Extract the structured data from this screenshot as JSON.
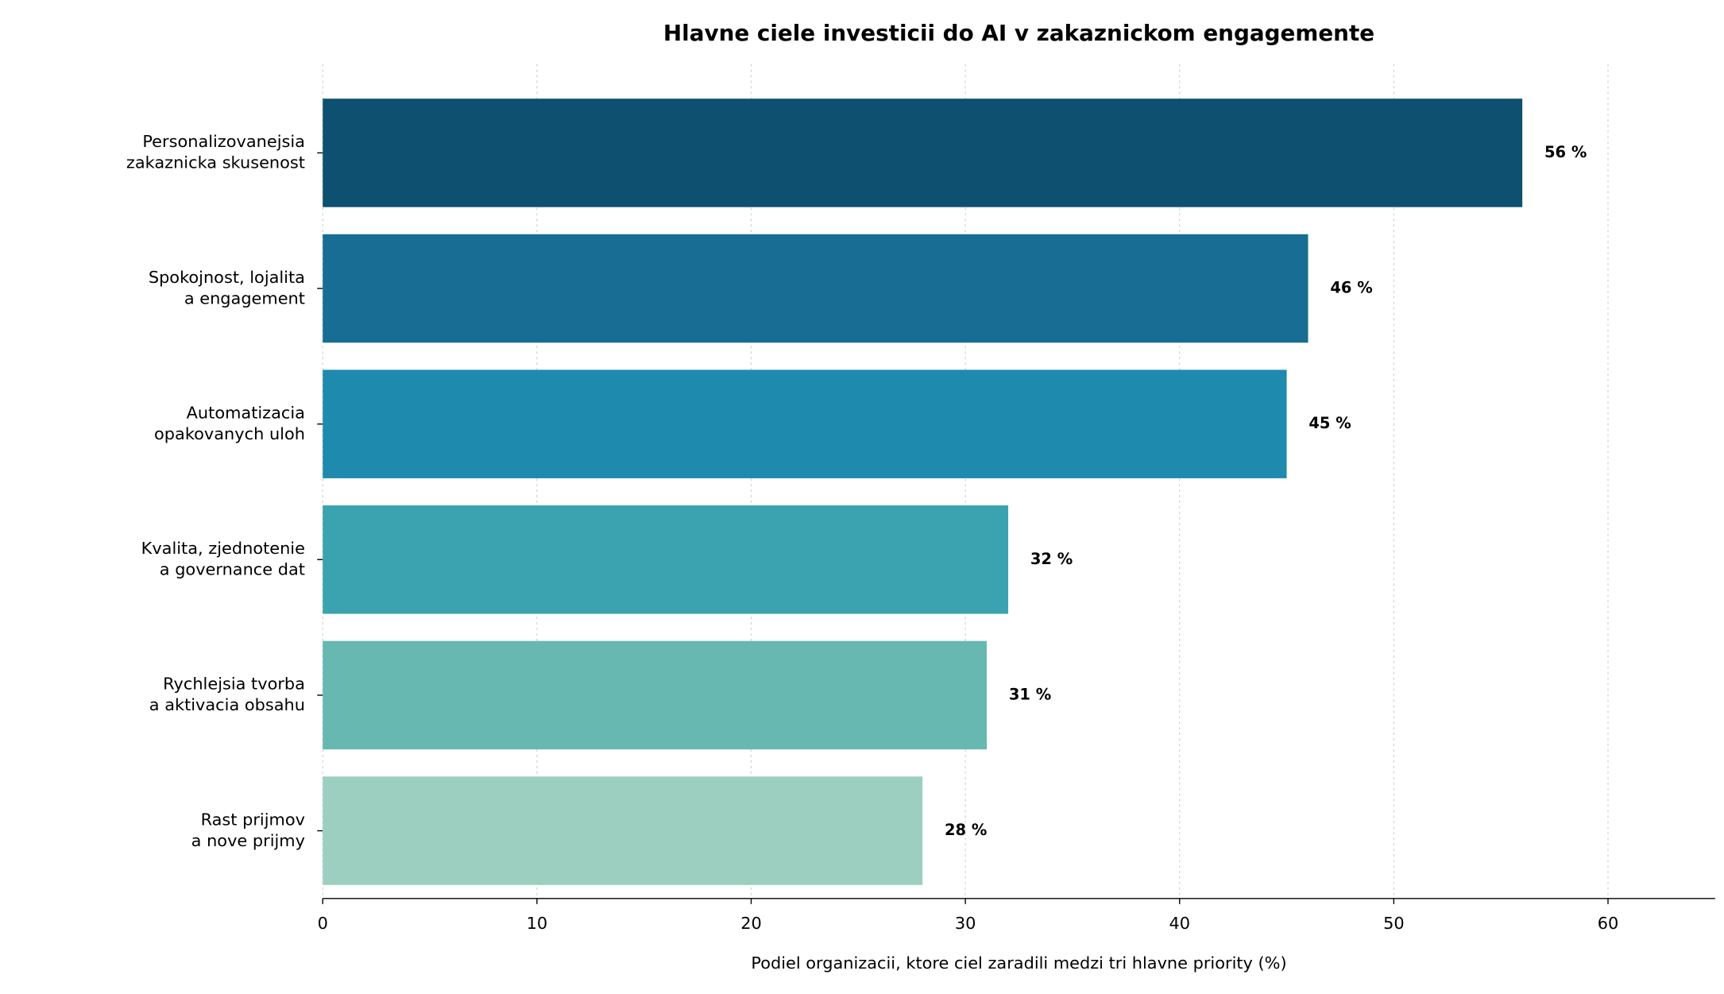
{
  "chart_data": {
    "type": "barh",
    "title": "Hlavne ciele investicii do AI v zakaznickom engagemente",
    "xlabel": "Podiel organizacii, ktore ciel zaradili medzi tri hlavne priority (%)",
    "categories": [
      "Personalizovanejsia\nzakaznicka skusenost",
      "Spokojnost, lojalita\na engagement",
      "Automatizacia\nopakovanych uloh",
      "Kvalita, zjednotenie\na governance dat",
      "Rychlejsia tvorba\na aktivacia obsahu",
      "Rast prijmov\na nove prijmy"
    ],
    "values": [
      56,
      46,
      45,
      32,
      31,
      28
    ],
    "value_labels": [
      "56 %",
      "46 %",
      "45 %",
      "32 %",
      "31 %",
      "28 %"
    ],
    "colors": [
      "#0e5070",
      "#176d93",
      "#1e8aae",
      "#3ba3b0",
      "#67b8b0",
      "#9dcfc1"
    ],
    "xlim": [
      0,
      65
    ],
    "xticks": [
      0,
      10,
      20,
      30,
      40,
      50,
      60
    ],
    "grid": true
  }
}
